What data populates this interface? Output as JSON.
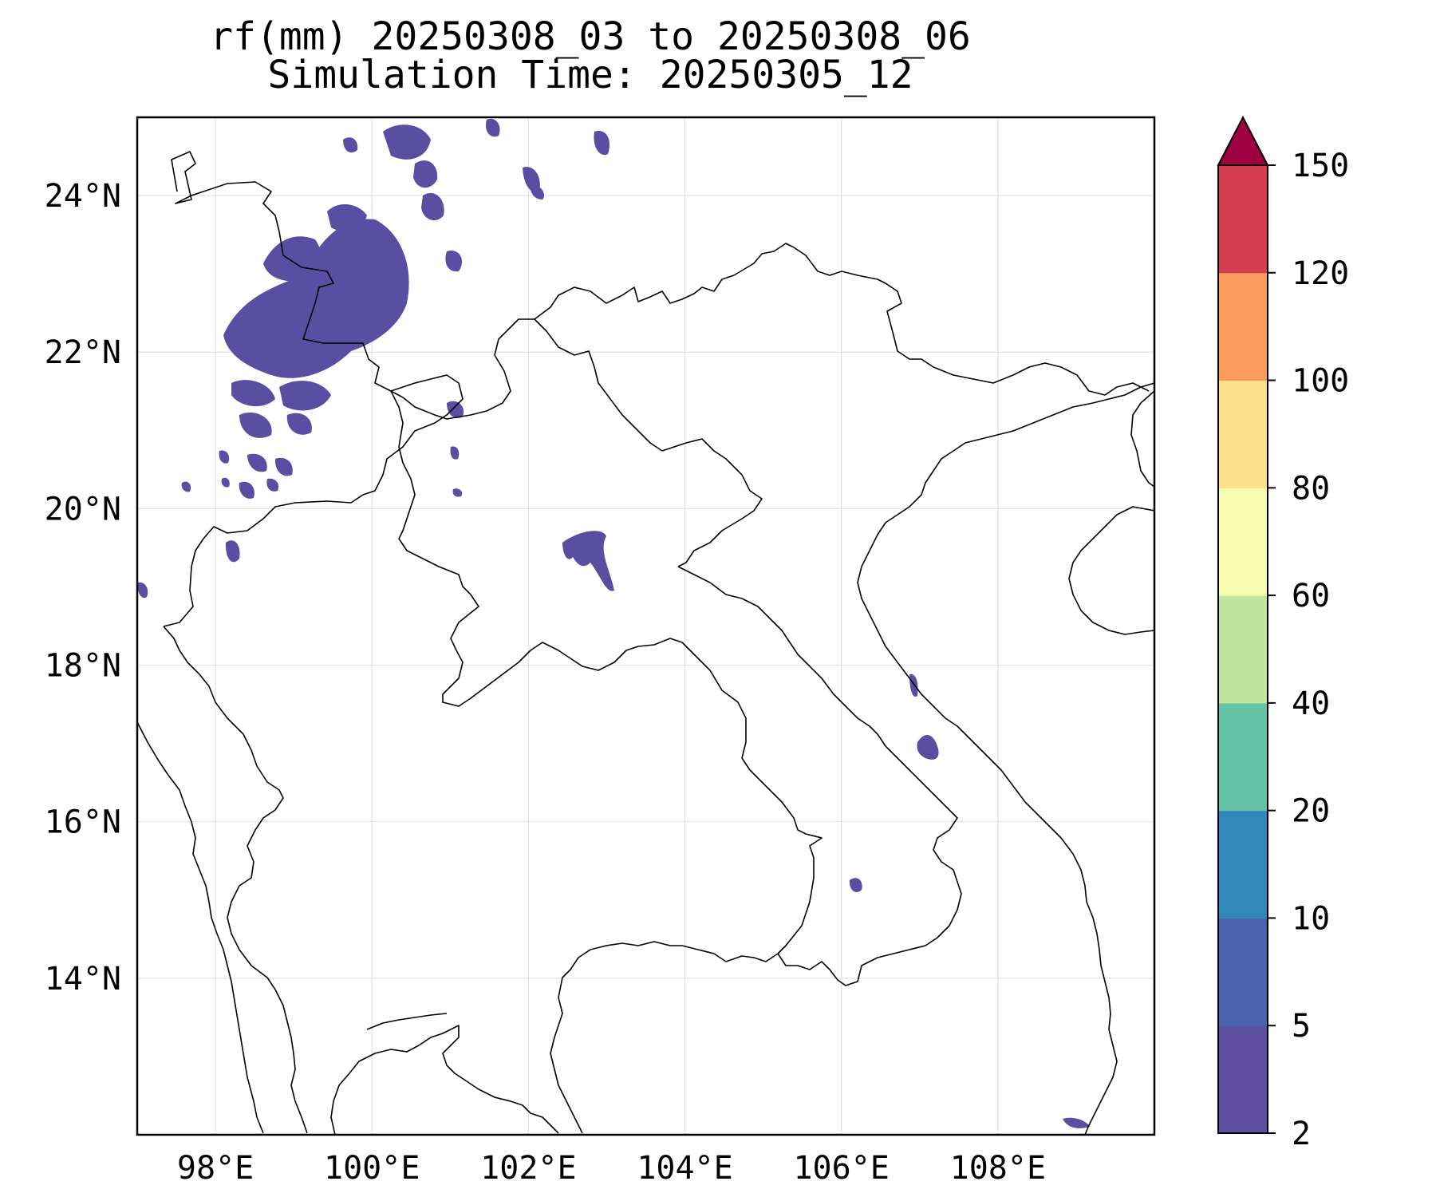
{
  "title": {
    "line1": "rf(mm) 20250308_03 to 20250308_06",
    "line2": "Simulation Time: 20250305_12"
  },
  "axes": {
    "lon_ticks": [
      {
        "value": 98,
        "label": "98°E"
      },
      {
        "value": 100,
        "label": "100°E"
      },
      {
        "value": 102,
        "label": "102°E"
      },
      {
        "value": 104,
        "label": "104°E"
      },
      {
        "value": 106,
        "label": "106°E"
      },
      {
        "value": 108,
        "label": "108°E"
      }
    ],
    "lat_ticks": [
      {
        "value": 24,
        "label": "24°N"
      },
      {
        "value": 22,
        "label": "22°N"
      },
      {
        "value": 20,
        "label": "20°N"
      },
      {
        "value": 18,
        "label": "18°N"
      },
      {
        "value": 16,
        "label": "16°N"
      },
      {
        "value": 14,
        "label": "14°N"
      }
    ],
    "lon_range": [
      97,
      110
    ],
    "lat_range": [
      12,
      25
    ],
    "grid": true
  },
  "colorbar": {
    "extend": "max",
    "levels": [
      {
        "label": "2",
        "color": "#5e4fa2"
      },
      {
        "label": "5",
        "color": "#4a63ae"
      },
      {
        "label": "10",
        "color": "#3288bd"
      },
      {
        "label": "20",
        "color": "#66c2a5"
      },
      {
        "label": "40",
        "color": "#bfe5a0"
      },
      {
        "label": "60",
        "color": "#f5fbb0"
      },
      {
        "label": "80",
        "color": "#fde08b"
      },
      {
        "label": "100",
        "color": "#f99b5a"
      },
      {
        "label": "120",
        "color": "#d53e4f"
      },
      {
        "label": "150",
        "color": "#9e0142"
      }
    ]
  },
  "rain_areas": [
    {
      "lon": 99.6,
      "lat": 22.7,
      "level": "2-5 mm"
    },
    {
      "lon": 102.8,
      "lat": 19.5,
      "level": "2-5 mm"
    },
    {
      "lon": 107.1,
      "lat": 17.0,
      "level": "2-5 mm"
    },
    {
      "lon": 106.2,
      "lat": 15.2,
      "level": "2-5 mm"
    },
    {
      "lon": 109.0,
      "lat": 12.1,
      "level": "2-5 mm"
    }
  ]
}
